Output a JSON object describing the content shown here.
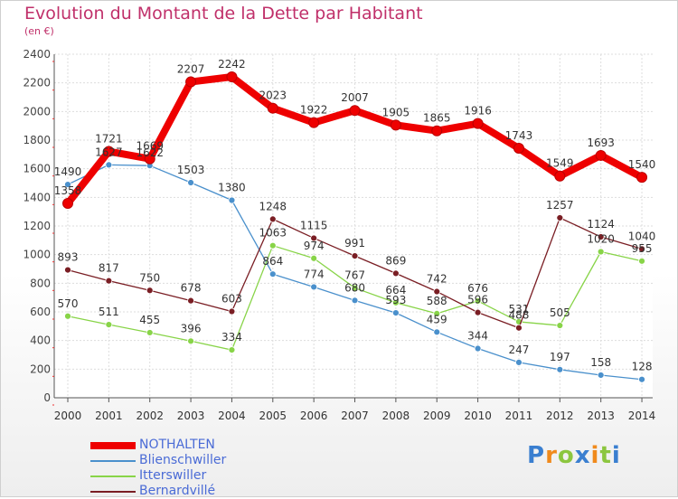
{
  "chart_data": {
    "type": "line",
    "title": "Evolution du Montant de la Dette par Habitant",
    "subtitle": "(en €)",
    "x": [
      "2000",
      "2001",
      "2002",
      "2003",
      "2004",
      "2005",
      "2006",
      "2007",
      "2008",
      "2009",
      "2010",
      "2011",
      "2012",
      "2013",
      "2014"
    ],
    "ylim": [
      0,
      2400
    ],
    "yticks": [
      0,
      200,
      400,
      600,
      800,
      1000,
      1200,
      1400,
      1600,
      1800,
      2000,
      2200,
      2400
    ],
    "grid": true,
    "legend_position": "bottom-left",
    "series": [
      {
        "name": "NOTHALTEN",
        "color": "#ee0000",
        "values": [
          1358,
          1721,
          1669,
          2207,
          2242,
          2023,
          1922,
          2007,
          1905,
          1865,
          1916,
          1743,
          1549,
          1693,
          1540
        ],
        "labels": [
          "1358",
          "1721",
          "1669",
          "2207",
          "2242",
          "2023",
          "1922",
          "2007",
          "1905",
          "1865",
          "1916",
          "1743",
          "1549",
          "1693",
          "1540"
        ]
      },
      {
        "name": "Blienschwiller",
        "color": "#4a90cc",
        "values": [
          1490,
          1627,
          1622,
          1503,
          1380,
          864,
          774,
          680,
          593,
          459,
          344,
          247,
          197,
          158,
          128
        ],
        "labels": [
          "1490",
          "1627",
          "1622",
          "1503",
          "1380",
          "864",
          "774",
          "680",
          "593",
          "459",
          "344",
          "247",
          "197",
          "158",
          "128"
        ]
      },
      {
        "name": "Itterswiller",
        "color": "#88d448",
        "values": [
          570,
          511,
          455,
          396,
          334,
          1063,
          974,
          767,
          664,
          588,
          676,
          531,
          505,
          1020,
          955
        ],
        "labels": [
          "570",
          "511",
          "455",
          "396",
          "334",
          "1063",
          "974",
          "767",
          "664",
          "588",
          "676",
          "531",
          "505",
          "1020",
          "955"
        ]
      },
      {
        "name": "Bernardvillé",
        "color": "#7a1e24",
        "values": [
          893,
          817,
          750,
          678,
          603,
          1248,
          1115,
          991,
          869,
          742,
          596,
          488,
          1257,
          1124,
          1040
        ],
        "labels": [
          "893",
          "817",
          "750",
          "678",
          "603",
          "1248",
          "1115",
          "991",
          "869",
          "742",
          "596",
          "488",
          "1257",
          "1124",
          "1040"
        ]
      }
    ]
  },
  "logo": {
    "text": "Proxiti",
    "letters": [
      {
        "ch": "P",
        "color": "#3a7fd0"
      },
      {
        "ch": "r",
        "color": "#f08a1c"
      },
      {
        "ch": "o",
        "color": "#8cc63f"
      },
      {
        "ch": "x",
        "color": "#3a7fd0"
      },
      {
        "ch": "i",
        "color": "#f08a1c"
      },
      {
        "ch": "t",
        "color": "#8cc63f"
      },
      {
        "ch": "i",
        "color": "#3a7fd0"
      }
    ]
  }
}
